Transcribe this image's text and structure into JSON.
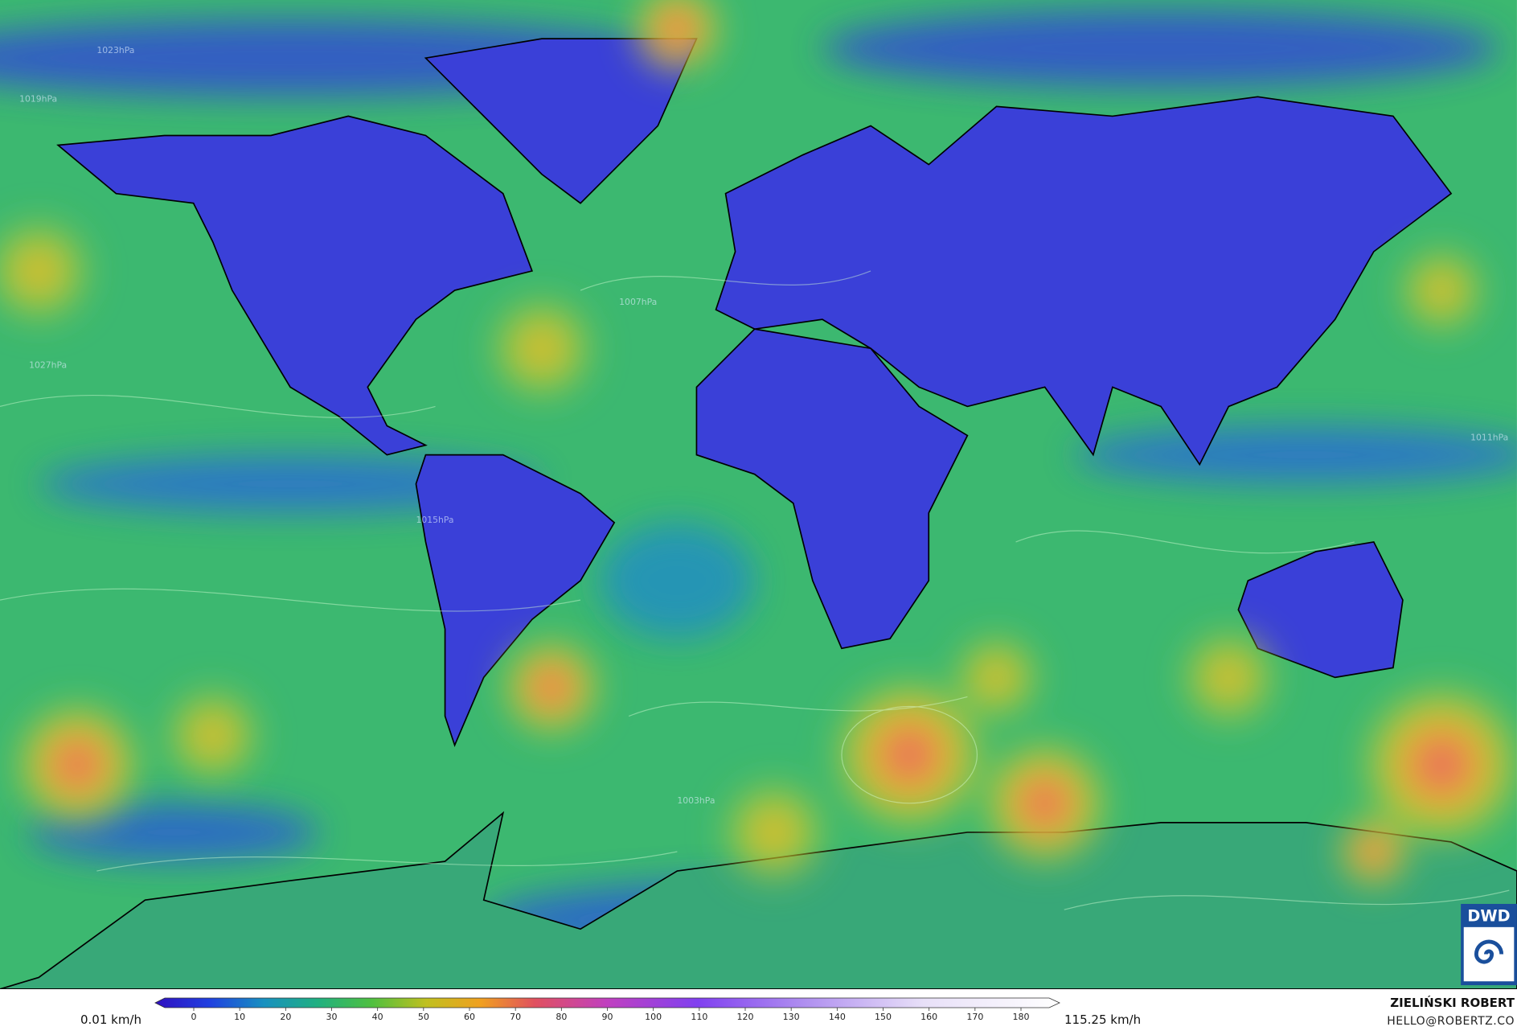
{
  "map": {
    "pressure_labels": [
      "1023hPa",
      "1019hPa",
      "1007hPa",
      "1015hPa",
      "1011hPa",
      "1027hPa",
      "1003hPa"
    ],
    "logo": "DWD",
    "colorbar": {
      "min_label": "0.01 km/h",
      "max_label": "115.25 km/h",
      "ticks": [
        0,
        10,
        20,
        30,
        40,
        50,
        60,
        70,
        80,
        90,
        100,
        110,
        120,
        130,
        140,
        150,
        160,
        170,
        180
      ]
    },
    "credit": {
      "name": "ZIELIŃSKI ROBERT",
      "email": "HELLO@ROBERTZ.CO"
    }
  }
}
